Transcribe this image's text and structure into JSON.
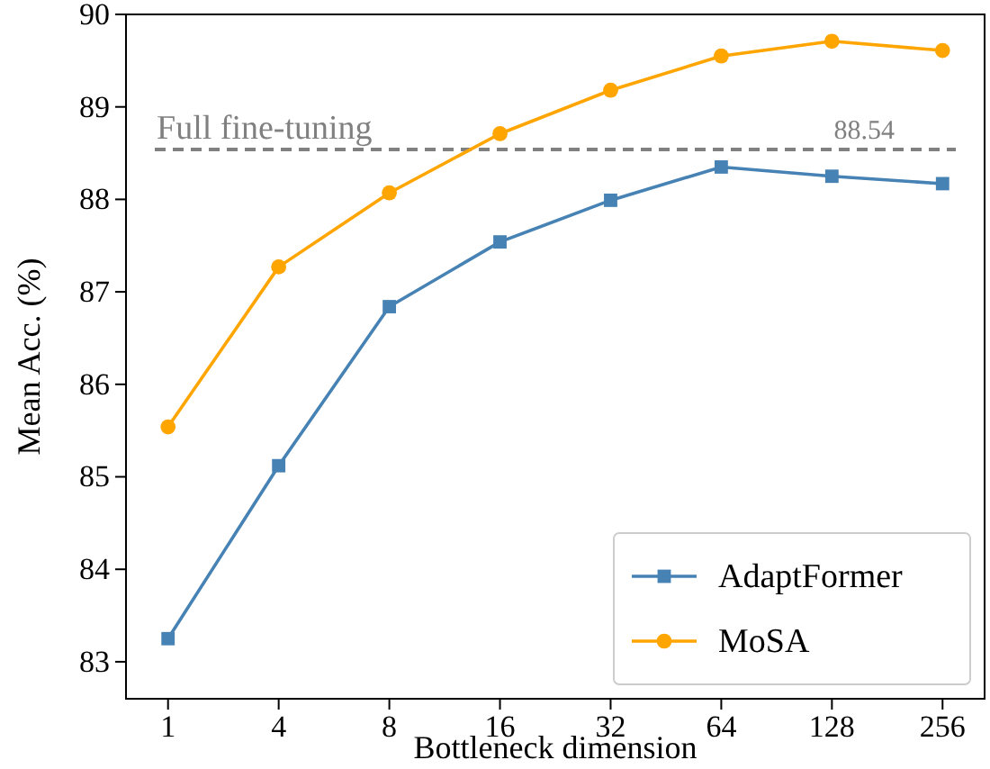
{
  "chart_data": {
    "type": "line",
    "xlabel": "Bottleneck dimension",
    "ylabel": "Mean Acc. (%)",
    "categories": [
      "1",
      "4",
      "8",
      "16",
      "32",
      "64",
      "128",
      "256"
    ],
    "series": [
      {
        "name": "AdaptFormer",
        "color": "#4682b4",
        "marker": "square",
        "values": [
          83.25,
          85.12,
          86.84,
          87.54,
          87.99,
          88.35,
          88.25,
          88.17
        ]
      },
      {
        "name": "MoSA",
        "color": "#ffa500",
        "marker": "circle",
        "values": [
          85.54,
          87.27,
          88.07,
          88.71,
          89.18,
          89.55,
          89.71,
          89.61
        ]
      }
    ],
    "ylim": [
      82.6,
      90
    ],
    "yticks": [
      83,
      84,
      85,
      86,
      87,
      88,
      89,
      90
    ],
    "ref_lines": [
      {
        "axis": "y",
        "value": 88.54,
        "label": "Full fine-tuning",
        "color": "#808080",
        "line_style": "dashed"
      }
    ],
    "annotations": [
      {
        "text": "88.54",
        "x": "128",
        "y": 88.54
      }
    ],
    "legend": "bottom right",
    "grid": false,
    "line_style": "solid"
  }
}
